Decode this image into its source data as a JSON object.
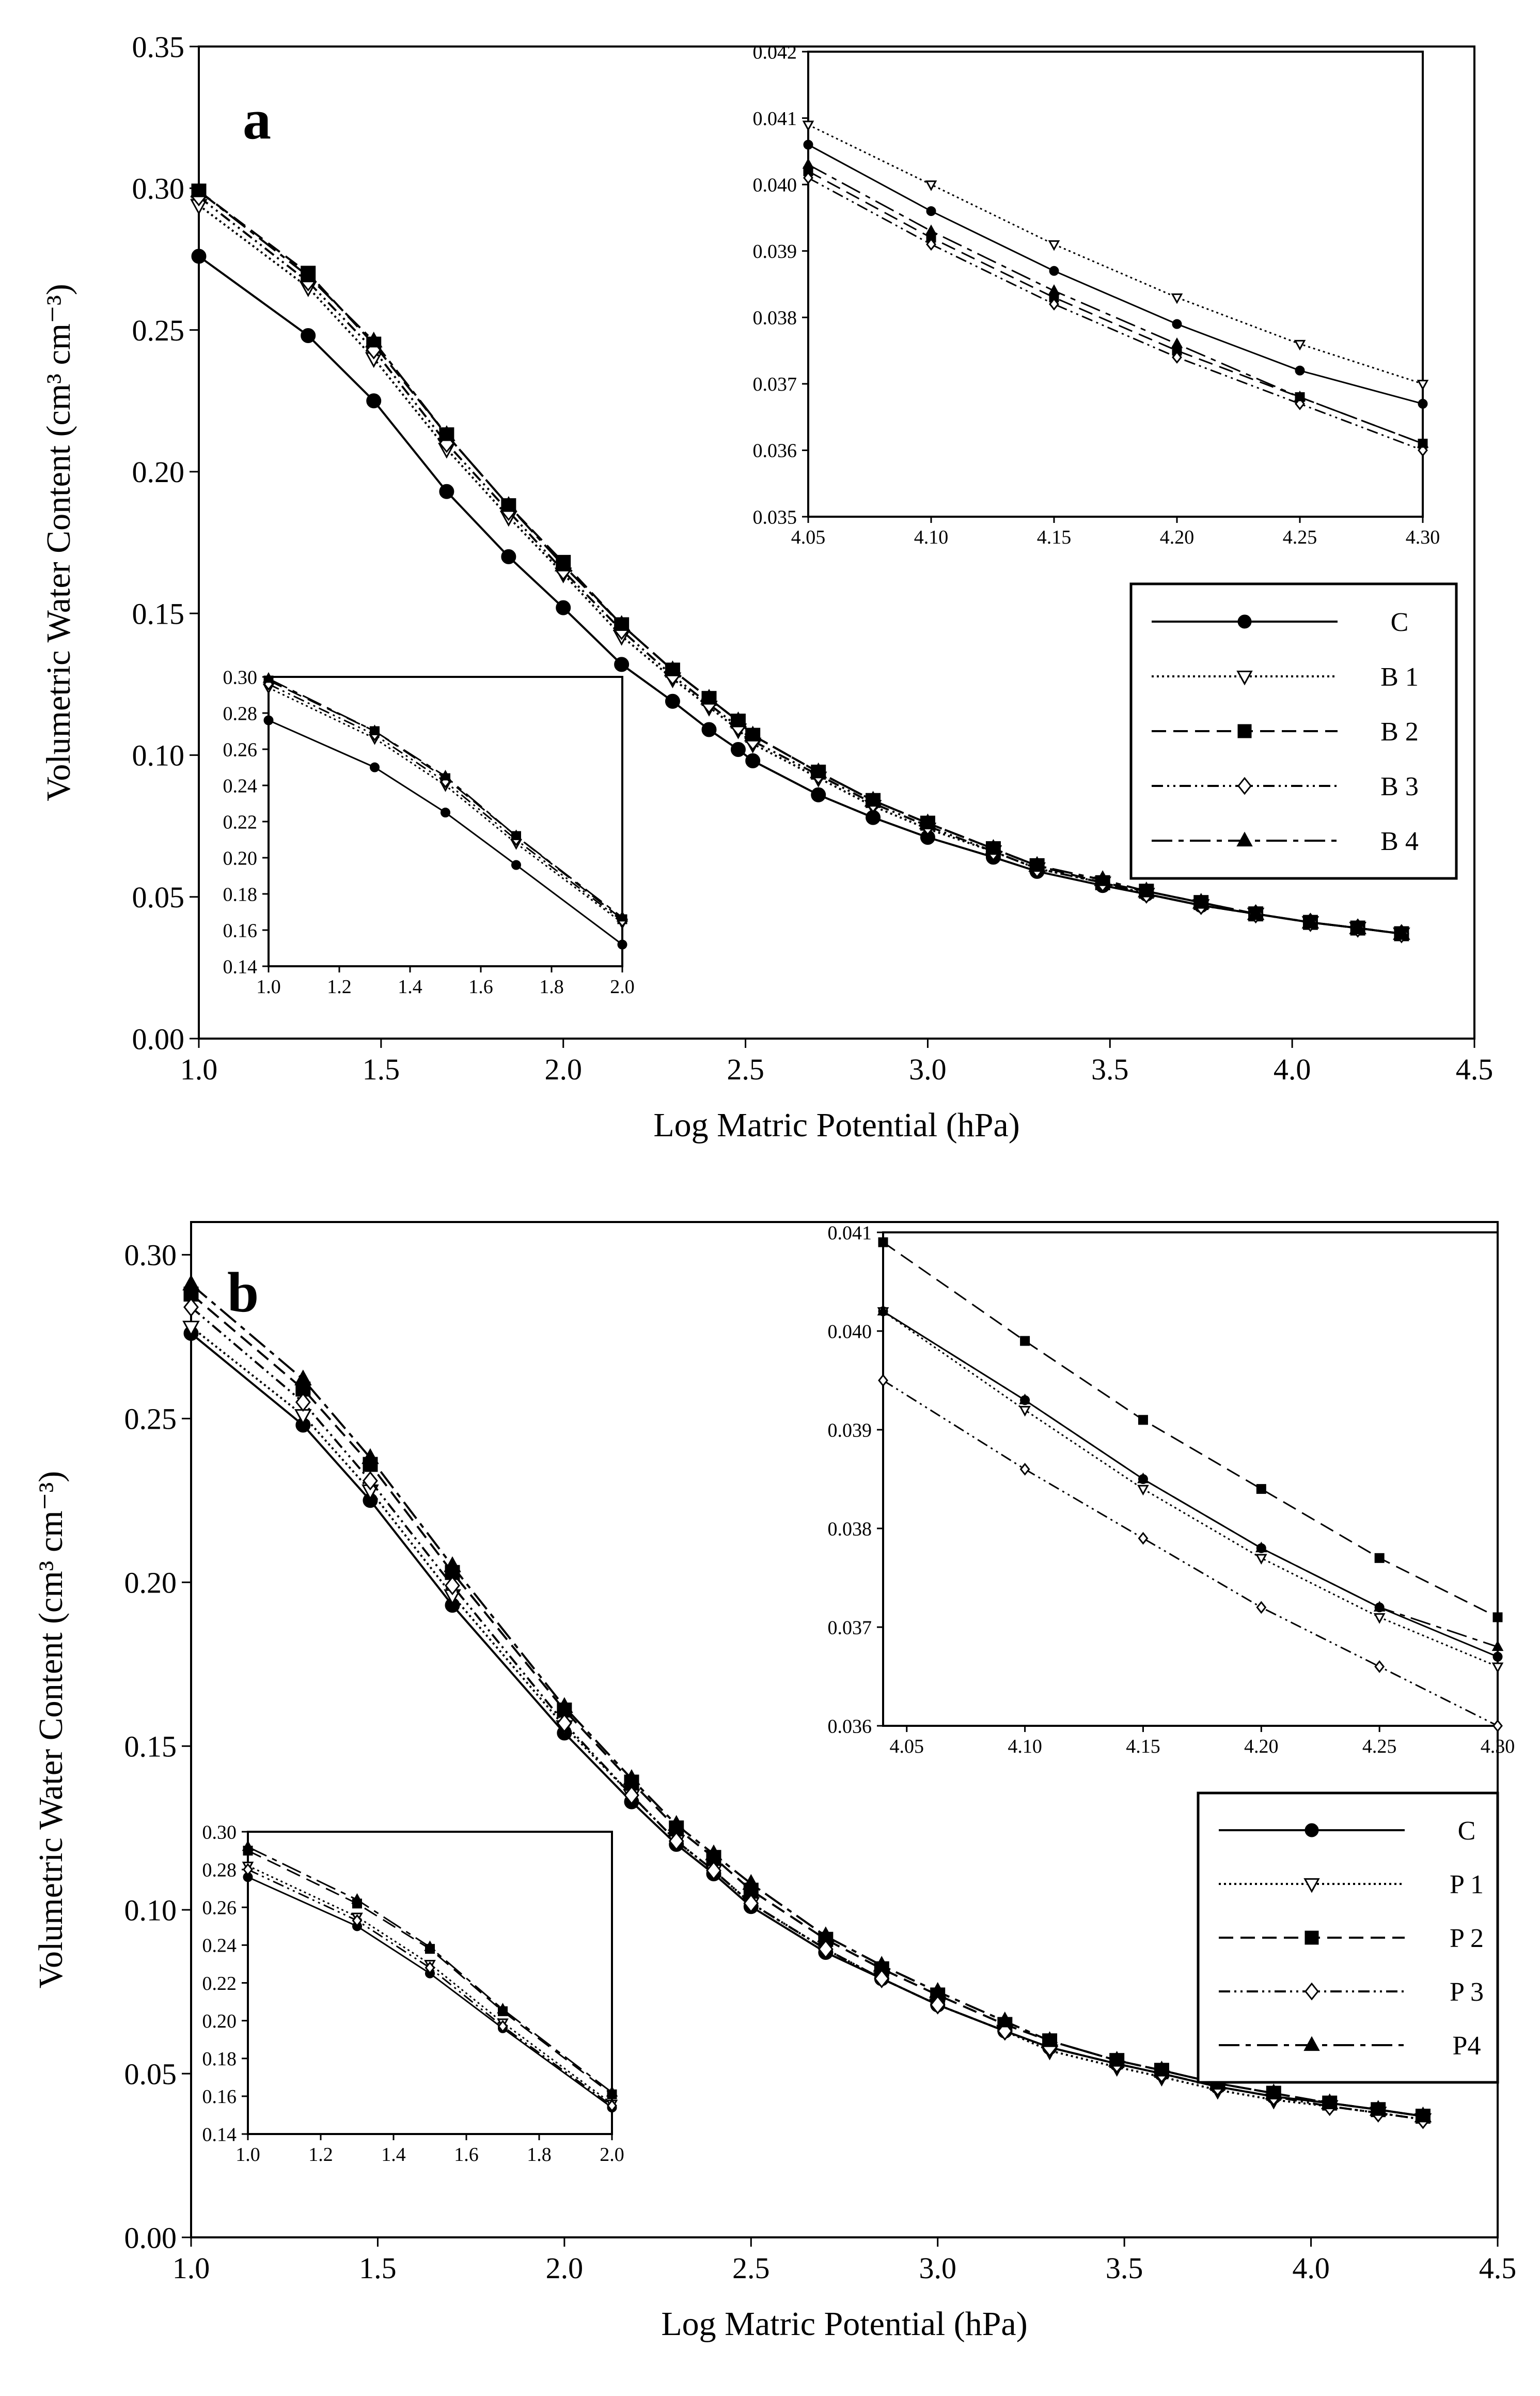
{
  "figure": {
    "description_labels": {
      "panel_a": "a",
      "panel_b": "b"
    }
  },
  "chart_data": [
    {
      "id": "a-main",
      "panel": "a",
      "type": "line",
      "xlabel": "Log Matric Potential (hPa)",
      "ylabel": "Volumetric Water Content (cm³ cm⁻³)",
      "xlim": [
        1.0,
        4.5
      ],
      "ylim": [
        0.0,
        0.35
      ],
      "xticks": [
        "1.0",
        "1.5",
        "2.0",
        "2.5",
        "3.0",
        "3.5",
        "4.0",
        "4.5"
      ],
      "yticks": [
        "0.00",
        "0.05",
        "0.10",
        "0.15",
        "0.20",
        "0.25",
        "0.30",
        "0.35"
      ],
      "legend": [
        "C",
        "B 1",
        "B 2",
        "B 3",
        "B 4"
      ],
      "x": [
        1.0,
        1.3,
        1.48,
        1.68,
        1.85,
        2.0,
        2.16,
        2.3,
        2.4,
        2.48,
        2.52,
        2.7,
        2.85,
        3.0,
        3.18,
        3.3,
        3.48,
        3.6,
        3.75,
        3.9,
        4.05,
        4.18,
        4.3
      ],
      "series": [
        {
          "name": "C",
          "values": [
            0.276,
            0.248,
            0.225,
            0.193,
            0.17,
            0.152,
            0.132,
            0.119,
            0.109,
            0.102,
            0.098,
            0.086,
            0.078,
            0.071,
            0.064,
            0.059,
            0.054,
            0.051,
            0.047,
            0.044,
            0.041,
            0.039,
            0.037
          ]
        },
        {
          "name": "B 1",
          "values": [
            0.294,
            0.265,
            0.24,
            0.208,
            0.184,
            0.164,
            0.142,
            0.127,
            0.117,
            0.109,
            0.104,
            0.092,
            0.082,
            0.074,
            0.066,
            0.06,
            0.055,
            0.051,
            0.047,
            0.044,
            0.041,
            0.039,
            0.037
          ]
        },
        {
          "name": "B 2",
          "values": [
            0.299,
            0.27,
            0.245,
            0.213,
            0.188,
            0.168,
            0.146,
            0.13,
            0.12,
            0.112,
            0.107,
            0.094,
            0.084,
            0.076,
            0.067,
            0.061,
            0.055,
            0.052,
            0.048,
            0.044,
            0.041,
            0.039,
            0.037
          ]
        },
        {
          "name": "B 3",
          "values": [
            0.297,
            0.267,
            0.243,
            0.21,
            0.186,
            0.165,
            0.144,
            0.128,
            0.118,
            0.11,
            0.105,
            0.093,
            0.083,
            0.075,
            0.066,
            0.06,
            0.055,
            0.051,
            0.047,
            0.044,
            0.041,
            0.039,
            0.037
          ]
        },
        {
          "name": "B 4",
          "values": [
            0.299,
            0.269,
            0.246,
            0.213,
            0.188,
            0.167,
            0.146,
            0.13,
            0.12,
            0.112,
            0.107,
            0.094,
            0.084,
            0.076,
            0.067,
            0.061,
            0.056,
            0.052,
            0.048,
            0.044,
            0.041,
            0.039,
            0.037
          ]
        }
      ]
    },
    {
      "id": "a-inset-top",
      "panel": "a",
      "type": "line",
      "xlim": [
        4.05,
        4.3
      ],
      "ylim": [
        0.035,
        0.042
      ],
      "xticks": [
        "4.05",
        "4.10",
        "4.15",
        "4.20",
        "4.25",
        "4.30"
      ],
      "yticks": [
        "0.035",
        "0.036",
        "0.037",
        "0.038",
        "0.039",
        "0.040",
        "0.041",
        "0.042"
      ],
      "x": [
        4.05,
        4.1,
        4.15,
        4.2,
        4.25,
        4.3
      ],
      "series": [
        {
          "name": "C",
          "values": [
            0.0406,
            0.0396,
            0.0387,
            0.0379,
            0.0372,
            0.0367
          ]
        },
        {
          "name": "B 1",
          "values": [
            0.0409,
            0.04,
            0.0391,
            0.0383,
            0.0376,
            0.037
          ]
        },
        {
          "name": "B 2",
          "values": [
            0.0402,
            0.0392,
            0.0383,
            0.0375,
            0.0368,
            0.0361
          ]
        },
        {
          "name": "B 3",
          "values": [
            0.0401,
            0.0391,
            0.0382,
            0.0374,
            0.0367,
            0.036
          ]
        },
        {
          "name": "B 4",
          "values": [
            0.0403,
            0.0393,
            0.0384,
            0.0376,
            0.0368,
            0.0361
          ]
        }
      ]
    },
    {
      "id": "a-inset-bottom",
      "panel": "a",
      "type": "line",
      "xlim": [
        1.0,
        2.0
      ],
      "ylim": [
        0.14,
        0.3
      ],
      "xticks": [
        "1.0",
        "1.2",
        "1.4",
        "1.6",
        "1.8",
        "2.0"
      ],
      "yticks": [
        "0.14",
        "0.16",
        "0.18",
        "0.20",
        "0.22",
        "0.24",
        "0.26",
        "0.28",
        "0.30"
      ],
      "x": [
        1.0,
        1.3,
        1.5,
        1.7,
        2.0
      ],
      "series": [
        {
          "name": "C",
          "values": [
            0.276,
            0.25,
            0.225,
            0.196,
            0.152
          ]
        },
        {
          "name": "B 1",
          "values": [
            0.294,
            0.266,
            0.24,
            0.208,
            0.164
          ]
        },
        {
          "name": "B 2",
          "values": [
            0.298,
            0.27,
            0.244,
            0.212,
            0.166
          ]
        },
        {
          "name": "B 3",
          "values": [
            0.296,
            0.268,
            0.242,
            0.21,
            0.165
          ]
        },
        {
          "name": "B 4",
          "values": [
            0.299,
            0.27,
            0.245,
            0.212,
            0.167
          ]
        }
      ]
    },
    {
      "id": "b-main",
      "panel": "b",
      "type": "line",
      "xlabel": "Log Matric Potential (hPa)",
      "ylabel": "Volumetric Water Content (cm³ cm⁻³)",
      "xlim": [
        1.0,
        4.5
      ],
      "ylim": [
        0.0,
        0.31
      ],
      "xticks": [
        "1.0",
        "1.5",
        "2.0",
        "2.5",
        "3.0",
        "3.5",
        "4.0",
        "4.5"
      ],
      "yticks": [
        "0.00",
        "0.05",
        "0.10",
        "0.15",
        "0.20",
        "0.25",
        "0.30"
      ],
      "legend": [
        "C",
        "P 1",
        "P 2",
        "P 3",
        "P4"
      ],
      "x": [
        1.0,
        1.3,
        1.48,
        1.7,
        2.0,
        2.18,
        2.3,
        2.4,
        2.5,
        2.7,
        2.85,
        3.0,
        3.18,
        3.3,
        3.48,
        3.6,
        3.75,
        3.9,
        4.05,
        4.18,
        4.3
      ],
      "series": [
        {
          "name": "C",
          "values": [
            0.276,
            0.248,
            0.225,
            0.193,
            0.154,
            0.133,
            0.12,
            0.111,
            0.101,
            0.087,
            0.079,
            0.071,
            0.063,
            0.058,
            0.053,
            0.05,
            0.046,
            0.043,
            0.041,
            0.039,
            0.037
          ]
        },
        {
          "name": "P 1",
          "values": [
            0.278,
            0.251,
            0.228,
            0.196,
            0.156,
            0.135,
            0.121,
            0.112,
            0.102,
            0.088,
            0.079,
            0.071,
            0.063,
            0.057,
            0.052,
            0.049,
            0.045,
            0.042,
            0.04,
            0.038,
            0.036
          ]
        },
        {
          "name": "P 2",
          "values": [
            0.288,
            0.259,
            0.236,
            0.203,
            0.161,
            0.139,
            0.125,
            0.116,
            0.106,
            0.091,
            0.082,
            0.074,
            0.065,
            0.06,
            0.054,
            0.051,
            0.047,
            0.044,
            0.041,
            0.039,
            0.037
          ]
        },
        {
          "name": "P 3",
          "values": [
            0.284,
            0.255,
            0.231,
            0.199,
            0.157,
            0.135,
            0.121,
            0.112,
            0.102,
            0.088,
            0.079,
            0.071,
            0.063,
            0.058,
            0.053,
            0.05,
            0.046,
            0.043,
            0.04,
            0.038,
            0.036
          ]
        },
        {
          "name": "P4",
          "values": [
            0.291,
            0.262,
            0.238,
            0.205,
            0.162,
            0.14,
            0.126,
            0.117,
            0.108,
            0.092,
            0.083,
            0.075,
            0.066,
            0.06,
            0.054,
            0.051,
            0.047,
            0.044,
            0.041,
            0.039,
            0.037
          ]
        }
      ]
    },
    {
      "id": "b-inset-top",
      "panel": "b",
      "type": "line",
      "xlim": [
        4.04,
        4.3
      ],
      "ylim": [
        0.036,
        0.041
      ],
      "xticks": [
        "4.05",
        "4.10",
        "4.15",
        "4.20",
        "4.25",
        "4.30"
      ],
      "yticks": [
        "0.036",
        "0.037",
        "0.038",
        "0.039",
        "0.040",
        "0.041"
      ],
      "x": [
        4.04,
        4.1,
        4.15,
        4.2,
        4.25,
        4.3
      ],
      "series": [
        {
          "name": "C",
          "values": [
            0.0402,
            0.0393,
            0.0385,
            0.0378,
            0.0372,
            0.0367
          ]
        },
        {
          "name": "P 1",
          "values": [
            0.0402,
            0.0392,
            0.0384,
            0.0377,
            0.0371,
            0.0366
          ]
        },
        {
          "name": "P 2",
          "values": [
            0.0409,
            0.0399,
            0.0391,
            0.0384,
            0.0377,
            0.0371
          ]
        },
        {
          "name": "P 3",
          "values": [
            0.0395,
            0.0386,
            0.0379,
            0.0372,
            0.0366,
            0.036
          ]
        },
        {
          "name": "P4",
          "values": [
            0.0402,
            0.0393,
            0.0385,
            0.0378,
            0.0372,
            0.0368
          ]
        }
      ]
    },
    {
      "id": "b-inset-bottom",
      "panel": "b",
      "type": "line",
      "xlim": [
        1.0,
        2.0
      ],
      "ylim": [
        0.14,
        0.3
      ],
      "xticks": [
        "1.0",
        "1.2",
        "1.4",
        "1.6",
        "1.8",
        "2.0"
      ],
      "yticks": [
        "0.14",
        "0.16",
        "0.18",
        "0.20",
        "0.22",
        "0.24",
        "0.26",
        "0.28",
        "0.30"
      ],
      "x": [
        1.0,
        1.3,
        1.5,
        1.7,
        2.0
      ],
      "series": [
        {
          "name": "C",
          "values": [
            0.276,
            0.25,
            0.225,
            0.196,
            0.154
          ]
        },
        {
          "name": "P 1",
          "values": [
            0.282,
            0.255,
            0.23,
            0.199,
            0.156
          ]
        },
        {
          "name": "P 2",
          "values": [
            0.29,
            0.262,
            0.238,
            0.205,
            0.161
          ]
        },
        {
          "name": "P 3",
          "values": [
            0.28,
            0.253,
            0.228,
            0.197,
            0.155
          ]
        },
        {
          "name": "P4",
          "values": [
            0.292,
            0.264,
            0.239,
            0.206,
            0.162
          ]
        }
      ]
    }
  ]
}
